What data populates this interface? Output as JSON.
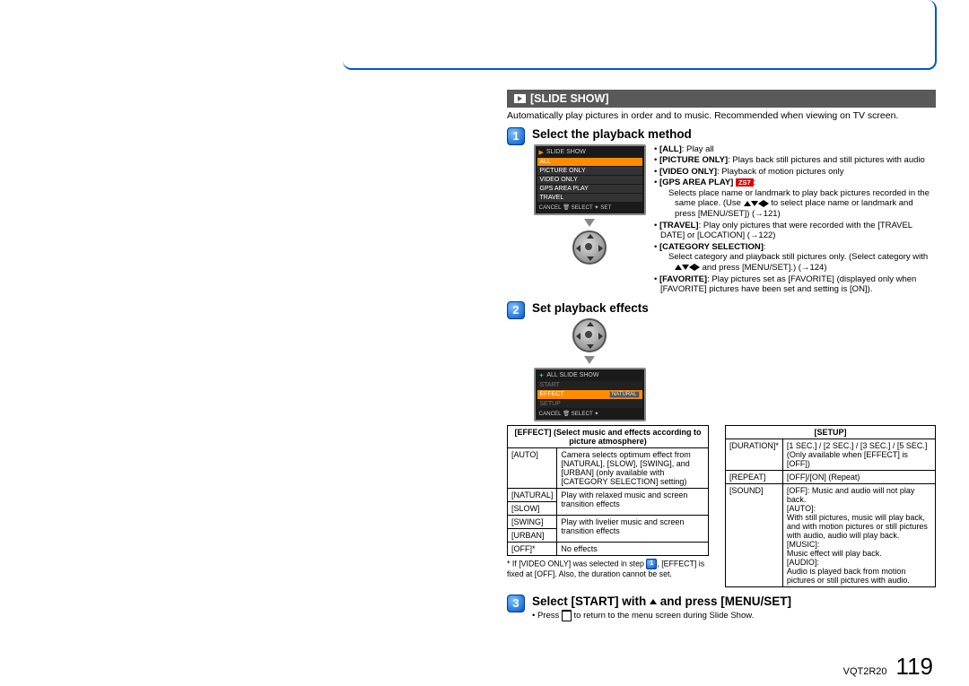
{
  "header": {
    "title": "[SLIDE SHOW]"
  },
  "intro": "Automatically play pictures in order and to music. Recommended when viewing on TV screen.",
  "step1": {
    "num": "1",
    "title": "Select the playback method",
    "lcd": {
      "header": "SLIDE SHOW",
      "rows": [
        "ALL",
        "PICTURE ONLY",
        "VIDEO ONLY",
        "GPS AREA PLAY",
        "TRAVEL"
      ],
      "selected_index": 0,
      "footer": "CANCEL 🗑 SELECT ✦ SET"
    },
    "bullets": [
      {
        "b": "[ALL]",
        "t": ": Play all"
      },
      {
        "b": "[PICTURE ONLY]",
        "t": ": Plays back still pictures and still pictures with audio"
      },
      {
        "b": "[VIDEO ONLY]",
        "t": ": Playback of motion pictures only"
      },
      {
        "b": "[GPS AREA PLAY]",
        "tag": "ZS7",
        "t": ":",
        "sub": "Selects place name or landmark to play back pictures recorded in the same place. (Use ▲▼◄► to select place name or landmark and press [MENU/SET]) (→121)"
      },
      {
        "b": "[TRAVEL]",
        "t": ": Play only pictures that were recorded with the [TRAVEL DATE] or [LOCATION] (→122)"
      },
      {
        "b": "[CATEGORY SELECTION]",
        "t": ":",
        "sub": "Select category and playback still pictures only. (Select category with ▲▼◄► and press [MENU/SET].) (→124)"
      },
      {
        "b": "[FAVORITE]",
        "t": ": Play pictures set as [FAVORITE] (displayed only when [FAVORITE] pictures have been set and setting is [ON])."
      }
    ]
  },
  "step2": {
    "num": "2",
    "title": "Set playback effects",
    "lcd": {
      "header": "ALL SLIDE SHOW",
      "rows": [
        {
          "l": "START",
          "r": ""
        },
        {
          "l": "EFFECT",
          "r": "NATURAL",
          "sel": true
        },
        {
          "l": "SETUP",
          "r": ""
        }
      ],
      "footer": "CANCEL 🗑 SELECT ✦"
    }
  },
  "effect_table": {
    "title": "[EFFECT] (Select music and effects according to picture atmosphere)",
    "rows": [
      [
        "[AUTO]",
        "Camera selects optimum effect from [NATURAL], [SLOW], [SWING], and [URBAN] (only available with [CATEGORY SELECTION] setting)"
      ],
      [
        "[NATURAL]",
        "Play with relaxed music and screen transition effects"
      ],
      [
        "[SLOW]",
        ""
      ],
      [
        "[SWING]",
        "Play with livelier music and screen transition effects"
      ],
      [
        "[URBAN]",
        ""
      ],
      [
        "[OFF]*",
        "No effects"
      ]
    ],
    "footnote": "* If [VIDEO ONLY] was selected in step 1, [EFFECT] is fixed at [OFF]. Also, the duration cannot be set."
  },
  "setup_table": {
    "title": "[SETUP]",
    "rows": [
      [
        "[DURATION]*",
        "[1 SEC.] / [2 SEC.] / [3 SEC.] / [5 SEC.] (Only available when [EFFECT] is [OFF])"
      ],
      [
        "[REPEAT]",
        "[OFF]/[ON] (Repeat)"
      ],
      [
        "[SOUND]",
        "[OFF]: Music and audio will not play back.\n[AUTO]:\nWith still pictures, music will play back, and with motion pictures or still pictures with audio, audio will play back.\n[MUSIC]:\nMusic effect will play back.\n[AUDIO]:\nAudio is played back from motion pictures or still pictures with audio."
      ]
    ]
  },
  "step3": {
    "num": "3",
    "title": "Select [START] with ▲ and press [MENU/SET]",
    "note": "• Press 🗑 to return to the menu screen during Slide Show."
  },
  "footer": {
    "code": "VQT2R20",
    "page": "119"
  }
}
